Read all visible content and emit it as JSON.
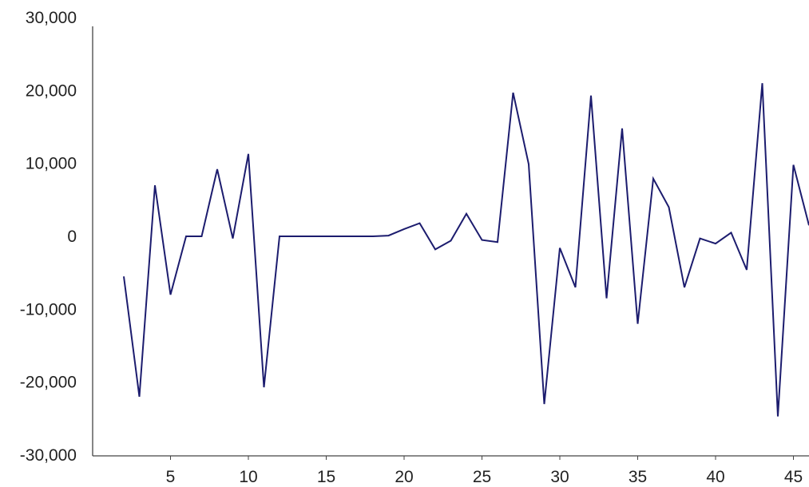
{
  "chart_data": {
    "type": "line",
    "title": "",
    "xlabel": "",
    "ylabel": "",
    "xlim": [
      0,
      46
    ],
    "ylim": [
      -30000,
      30000
    ],
    "grid": false,
    "legend": "none",
    "x_ticks": [
      5,
      10,
      15,
      20,
      25,
      30,
      35,
      40,
      45
    ],
    "x_tick_labels": [
      "5",
      "10",
      "15",
      "20",
      "25",
      "30",
      "35",
      "40",
      "45"
    ],
    "y_ticks": [
      -30000,
      -20000,
      -10000,
      0,
      10000,
      20000,
      30000
    ],
    "y_tick_labels": [
      "-30,000",
      "-20,000",
      "-10,000",
      "0",
      "10,000",
      "20,000",
      "30,000"
    ],
    "series": [
      {
        "color": "#1c1c6e",
        "x": [
          2,
          3,
          4,
          5,
          6,
          7,
          8,
          9,
          10,
          11,
          12,
          13,
          14,
          15,
          16,
          17,
          18,
          19,
          20,
          21,
          22,
          23,
          24,
          25,
          26,
          27,
          28,
          29,
          30,
          31,
          32,
          33,
          34,
          35,
          36,
          37,
          38,
          39,
          40,
          41,
          42,
          43,
          44,
          45,
          46
        ],
        "values": [
          -5500,
          -22000,
          7000,
          -8000,
          0,
          0,
          9200,
          -300,
          11300,
          -20700,
          0,
          0,
          0,
          0,
          0,
          0,
          0,
          100,
          1000,
          1800,
          -1800,
          -600,
          3100,
          -500,
          -800,
          19700,
          9900,
          -23000,
          -1600,
          -7000,
          19300,
          -8500,
          14800,
          -12000,
          7900,
          4000,
          -7000,
          -300,
          -1000,
          500,
          -4600,
          21000,
          -24700,
          9800,
          1500
        ]
      }
    ]
  }
}
